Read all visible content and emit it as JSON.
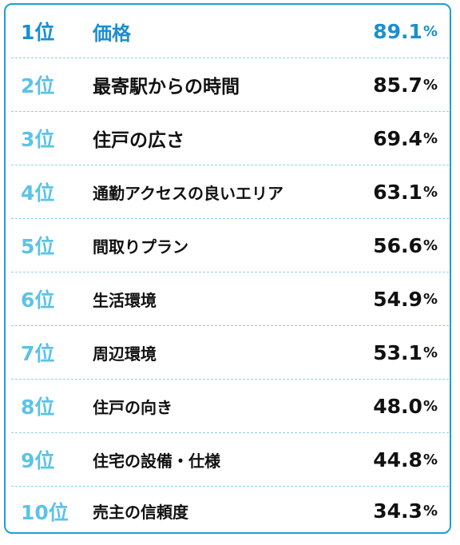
{
  "ranking": [
    {
      "rank": "1位",
      "label": "価格",
      "value": "89.1",
      "unit": "%"
    },
    {
      "rank": "2位",
      "label": "最寄駅からの時間",
      "value": "85.7",
      "unit": "%"
    },
    {
      "rank": "3位",
      "label": "住戸の広さ",
      "value": "69.4",
      "unit": "%"
    },
    {
      "rank": "4位",
      "label": "通勤アクセスの良いエリア",
      "value": "63.1",
      "unit": "%"
    },
    {
      "rank": "5位",
      "label": "間取りプラン",
      "value": "56.6",
      "unit": "%"
    },
    {
      "rank": "6位",
      "label": "生活環境",
      "value": "54.9",
      "unit": "%"
    },
    {
      "rank": "7位",
      "label": "周辺環境",
      "value": "53.1",
      "unit": "%"
    },
    {
      "rank": "8位",
      "label": "住戸の向き",
      "value": "48.0",
      "unit": "%"
    },
    {
      "rank": "9位",
      "label": "住宅の設備・仕様",
      "value": "44.8",
      "unit": "%"
    },
    {
      "rank": "10位",
      "label": "売主の信頼度",
      "value": "34.3",
      "unit": "%"
    }
  ],
  "colors": {
    "accent": "#1a8fcf",
    "rank_text": "#5cc3e5",
    "border": "#1a9fd8",
    "divider": "#8fd0ea",
    "text": "#111111"
  }
}
